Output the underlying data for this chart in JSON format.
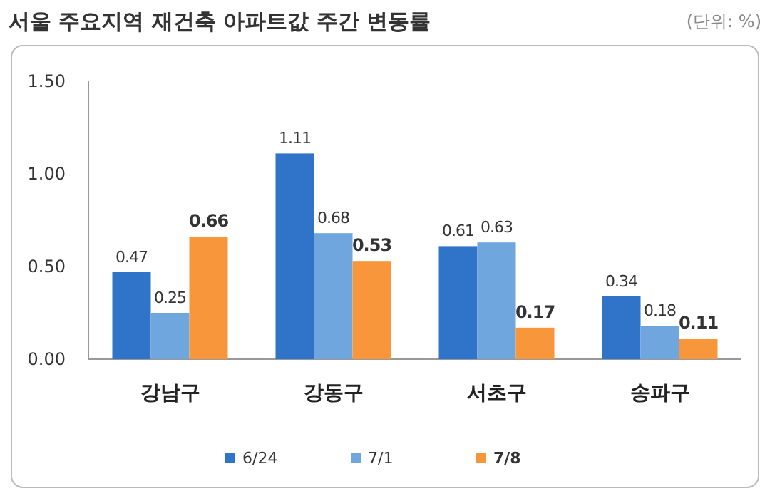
{
  "chart_data": {
    "type": "bar",
    "title": "서울 주요지역 재건축 아파트값 주간 변동률",
    "annotations": [
      "(단위: %)"
    ],
    "categories": [
      "강남구",
      "강동구",
      "서초구",
      "송파구"
    ],
    "series": [
      {
        "name": "6/24",
        "color": "#2f74c9",
        "values": [
          0.47,
          1.11,
          0.61,
          0.34
        ]
      },
      {
        "name": "7/1",
        "color": "#6ea6dd",
        "values": [
          0.25,
          0.68,
          0.63,
          0.18
        ]
      },
      {
        "name": "7/8",
        "color": "#f7963b",
        "values": [
          0.66,
          0.53,
          0.17,
          0.11
        ]
      }
    ],
    "ylim": [
      0,
      1.5
    ],
    "yticks": [
      {
        "value": 0,
        "label": "0.00"
      },
      {
        "value": 0.5,
        "label": "0.50"
      },
      {
        "value": 1,
        "label": "1.00"
      },
      {
        "value": 1.5,
        "label": "1.50"
      }
    ],
    "data_labels": true,
    "legend": "bottom",
    "grid": false
  }
}
